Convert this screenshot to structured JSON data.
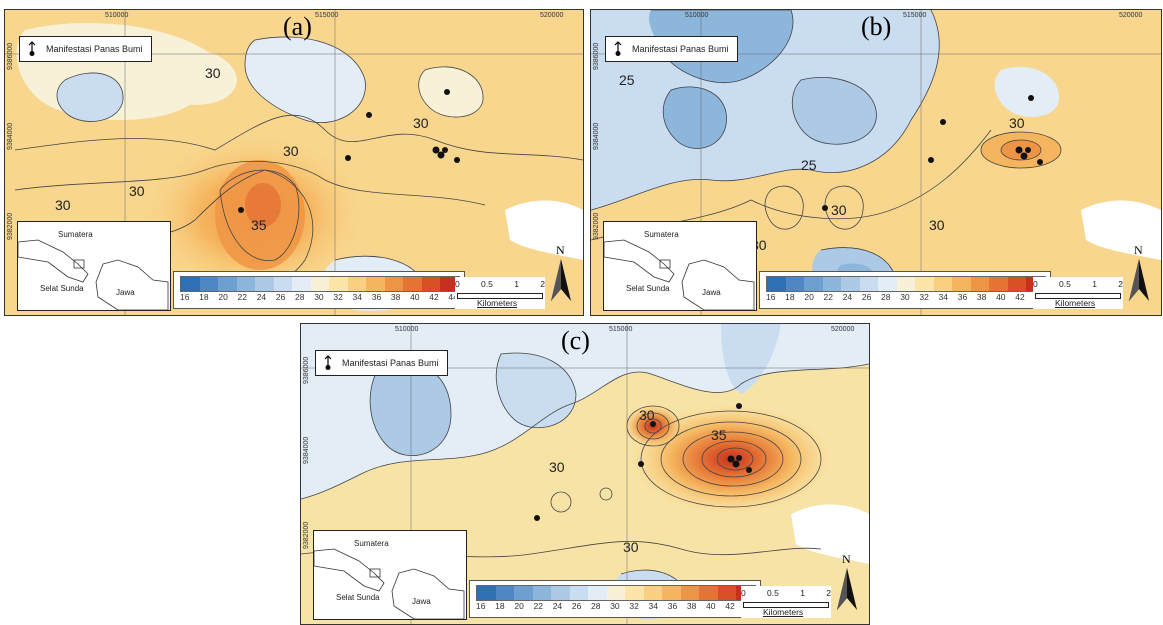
{
  "legend": {
    "label": "Manifestasi Panas Bumi",
    "icon": "geothermal-manifestation-icon"
  },
  "inset": {
    "island_north": "Sumatera",
    "strait": "Selat Sunda",
    "island_south": "Jawa"
  },
  "colorbar": {
    "ticks": [
      "16",
      "18",
      "20",
      "22",
      "24",
      "26",
      "28",
      "30",
      "32",
      "34",
      "36",
      "38",
      "40",
      "42",
      "44"
    ],
    "colors": [
      "#2f6fb5",
      "#4f87c4",
      "#6d9fd0",
      "#8cb6dc",
      "#acc9e6",
      "#cadcef",
      "#e3edf6",
      "#f7f1d8",
      "#fbe5a8",
      "#f9d07f",
      "#f5b55f",
      "#ee9545",
      "#e57334",
      "#d95027",
      "#c7301d"
    ]
  },
  "scale": {
    "ticks": [
      "0",
      "0.5",
      "1",
      "2"
    ],
    "unit": "Kilometers"
  },
  "north": "N",
  "coords": {
    "x1": "510000",
    "x2": "515000",
    "x3": "520000",
    "y1": "9384000",
    "y2": "9382000",
    "y3": "9386000"
  },
  "panels": [
    {
      "id": "a",
      "label": "(a)",
      "contour_labels": [
        "30",
        "30",
        "30",
        "30",
        "30",
        "35"
      ]
    },
    {
      "id": "b",
      "label": "(b)",
      "contour_labels": [
        "25",
        "25",
        "30",
        "30",
        "30",
        "30"
      ]
    },
    {
      "id": "c",
      "label": "(c)",
      "contour_labels": [
        "30",
        "30",
        "35",
        "30"
      ]
    }
  ]
}
